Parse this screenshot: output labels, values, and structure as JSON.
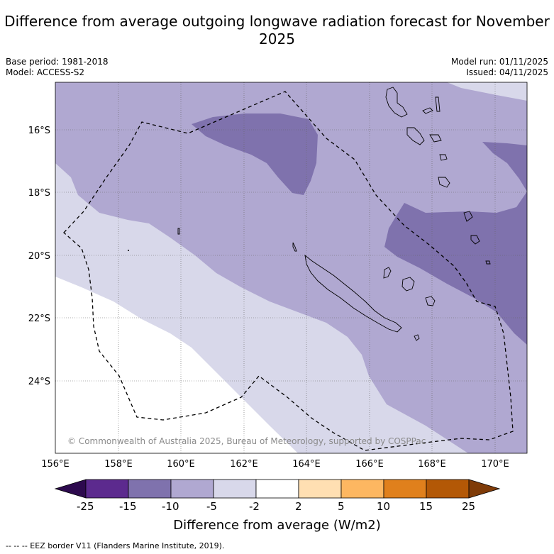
{
  "title": "Difference from average outgoing longwave radiation forecast for November 2025",
  "base_period": "Base period: 1981-2018",
  "model": "Model: ACCESS-S2",
  "model_run": "Model run: 01/11/2025",
  "issued": "Issued: 04/11/2025",
  "lon_ticks": [
    "156°E",
    "158°E",
    "160°E",
    "162°E",
    "164°E",
    "166°E",
    "168°E",
    "170°E"
  ],
  "lat_ticks": [
    "16°S",
    "18°S",
    "20°S",
    "22°S",
    "24°S"
  ],
  "copyright": "© Commonwealth of Australia 2025, Bureau of Meteorology, supported by COSPPac",
  "colorbar": {
    "labels": [
      "-25",
      "-15",
      "-10",
      "-5",
      "-2",
      "2",
      "5",
      "10",
      "15",
      "25"
    ],
    "title": "Difference from average (W/m2)",
    "colors": [
      "#2d0a4e",
      "#5c2a8e",
      "#7f72ad",
      "#b0a8d1",
      "#d8d8ea",
      "#ffffff",
      "#ffdfb2",
      "#fdb761",
      "#e0801c",
      "#b35806",
      "#7f3b08"
    ]
  },
  "footnote": "--  --  -- EEZ border V11 (Flanders Marine Institute, 2019)."
}
